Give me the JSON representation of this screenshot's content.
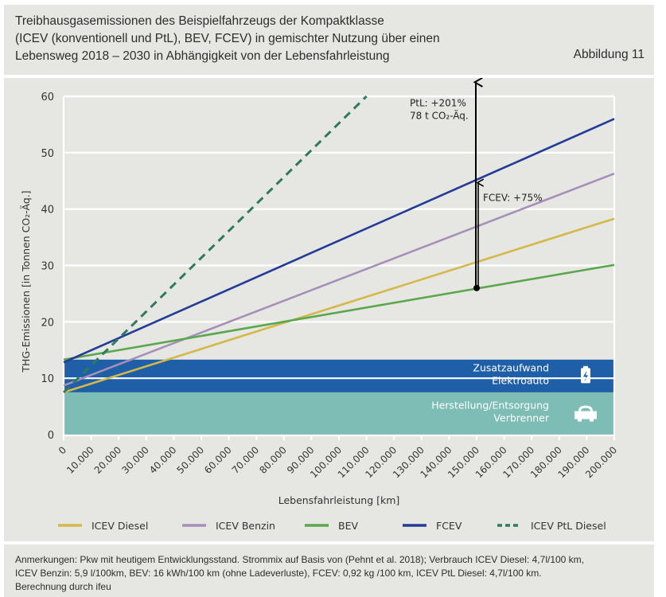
{
  "header": {
    "title_lines": [
      "Treibhausgasemissionen des Beispielfahrzeugs der Kompaktklasse",
      "(ICEV (konventionell und PtL), BEV, FCEV) in gemischter Nutzung über einen",
      "Lebensweg 2018 – 2030 in Abhängigkeit von der Lebensfahrleistung"
    ],
    "figure_number": "Abbildung 11"
  },
  "colors": {
    "background": "#e6e6e2",
    "icev_diesel": "#d4b84a",
    "icev_benzin": "#a68fb8",
    "bev": "#5aa84e",
    "fcev": "#233d96",
    "ptl": "#2e7a5e",
    "band_elektro": "#1f5fa8",
    "band_verbrenner": "#7dbdb6"
  },
  "chart_data": {
    "type": "line",
    "title": "Treibhausgasemissionen des Beispielfahrzeugs der Kompaktklasse (ICEV (konventionell und PtL), BEV, FCEV) in gemischter Nutzung über einen Lebensweg 2018 – 2030 in Abhängigkeit von der Lebensfahrleistung",
    "xlabel": "Lebensfahrleistung [km]",
    "ylabel": "THG-Emissionen [in Tonnen CO₂-Äq.]",
    "xlim": [
      0,
      200000
    ],
    "ylim": [
      0,
      60
    ],
    "grid": "horizontal",
    "legend_position": "bottom",
    "x_ticks": [
      "0",
      "10.000",
      "20.000",
      "30.000",
      "40.000",
      "50.000",
      "60.000",
      "70.000",
      "80.000",
      "90.000",
      "100.000",
      "110.000",
      "120.000",
      "130.000",
      "140.000",
      "150.000",
      "160.000",
      "170.000",
      "180.000",
      "190.000",
      "200.000"
    ],
    "y_ticks": [
      "0",
      "10",
      "20",
      "30",
      "40",
      "50",
      "60"
    ],
    "series": [
      {
        "name": "ICEV Diesel",
        "key": "icev_diesel",
        "style": "solid",
        "x": [
          0,
          200000
        ],
        "values": [
          7.5,
          38.3
        ]
      },
      {
        "name": "ICEV Benzin",
        "key": "icev_benzin",
        "style": "solid",
        "x": [
          0,
          200000
        ],
        "values": [
          8.7,
          46.3
        ]
      },
      {
        "name": "BEV",
        "key": "bev",
        "style": "solid",
        "x": [
          0,
          200000
        ],
        "values": [
          13.3,
          30.1
        ]
      },
      {
        "name": "FCEV",
        "key": "fcev",
        "style": "solid",
        "x": [
          0,
          200000
        ],
        "values": [
          12.8,
          56.0
        ]
      },
      {
        "name": "ICEV PtL Diesel",
        "key": "ptl",
        "style": "dashed",
        "x": [
          0,
          110000
        ],
        "values": [
          7.5,
          60.0
        ]
      }
    ],
    "bands": [
      {
        "label_lines": [
          "Herstellung/Entsorgung",
          "Verbrenner"
        ],
        "from": 0,
        "to": 7.5,
        "key": "band_verbrenner",
        "icon": "car-icon"
      },
      {
        "label_lines": [
          "Zusatzaufwand",
          "Elektroauto"
        ],
        "from": 7.5,
        "to": 13.3,
        "key": "band_elektro",
        "icon": "battery-icon"
      }
    ],
    "annotations": [
      {
        "x": 150000,
        "from": 26.0,
        "to": 62.5,
        "label_lines": [
          "PtL: +201%",
          "78 t CO₂-Äq."
        ]
      },
      {
        "x": 150000,
        "from": 26.0,
        "to": 45.1,
        "label_lines": [
          "FCEV: +75%"
        ]
      }
    ]
  },
  "notes": {
    "lines": [
      "Anmerkungen: Pkw mit heutigem Entwicklungsstand. Strommix auf Basis von (Pehnt et al. 2018); Verbrauch ICEV Diesel: 4,7l/100 km,",
      "ICEV Benzin: 5,9 l/100km, BEV: 16 kWh/100 km (ohne Ladeverluste), FCEV: 0,92 kg /100 km, ICEV PtL Diesel: 4,7l/100 km.",
      "Berechnung durch ifeu"
    ]
  }
}
